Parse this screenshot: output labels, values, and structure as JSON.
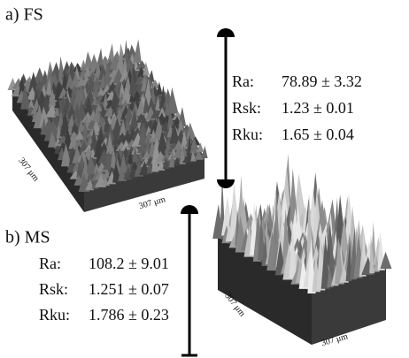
{
  "panels": [
    {
      "label": "a) FS",
      "metrics": [
        {
          "name": "Ra:",
          "value": "78.89 ± 3.32"
        },
        {
          "name": "Rsk:",
          "value": "1.23 ± 0.01"
        },
        {
          "name": "Rku:",
          "value": "1.65 ± 0.04"
        }
      ],
      "axis_labels": [
        "307 μm",
        "307 μm"
      ]
    },
    {
      "label": "b) MS",
      "metrics": [
        {
          "name": "Ra:",
          "value": "108.2 ± 9.01"
        },
        {
          "name": "Rsk:",
          "value": "1.251 ± 0.07"
        },
        {
          "name": "Rku:",
          "value": "1.786 ± 0.23"
        }
      ],
      "axis_labels": [
        "307 μm",
        "307 μm"
      ]
    }
  ]
}
